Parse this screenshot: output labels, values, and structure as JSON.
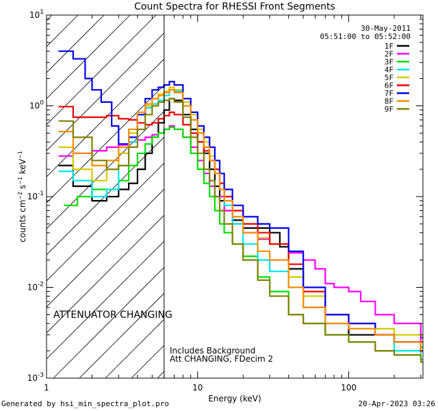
{
  "chart_data": {
    "type": "line",
    "title": "Count Spectra for RHESSI Front Segments",
    "xlabel": "Energy (keV)",
    "ylabel": "counts cm^-2 s^-1 keV^-1",
    "ylabel_parts": {
      "base": "counts cm",
      "exp1": "−2",
      "mid1": " s",
      "exp2": "−1",
      "mid2": " keV",
      "exp3": "−1"
    },
    "xscale": "log",
    "yscale": "log",
    "xlim": [
      1,
      310
    ],
    "ylim": [
      0.001,
      10
    ],
    "x_ticks": [
      {
        "value": 10,
        "label": "10"
      },
      {
        "value": 100,
        "label": "100"
      }
    ],
    "y_ticks": [
      {
        "value": 10,
        "base": "10",
        "exp": "1"
      },
      {
        "value": 1,
        "base": "10",
        "exp": "0"
      },
      {
        "value": 0.1,
        "base": "10",
        "exp": "-1"
      },
      {
        "value": 0.01,
        "base": "10",
        "exp": "-2"
      },
      {
        "value": 0.001,
        "base": "10",
        "exp": "-3"
      }
    ],
    "x_tick_left": "1",
    "date": "30-May-2011",
    "time_range": "05:51:00 to 05:52:00",
    "attenuator_text": "ATTENUATOR CHANGING",
    "attenuator_color": "#e00000",
    "shaded_region_max_energy": 6,
    "notes": [
      "Includes Background",
      "Att CHANGING, FDecim 2"
    ],
    "legend_position": "top-right",
    "series": [
      {
        "name": "1F",
        "color": "#000000",
        "points": [
          [
            1.2,
            0.22
          ],
          [
            1.5,
            0.13
          ],
          [
            2,
            0.09
          ],
          [
            2.5,
            0.1
          ],
          [
            3,
            0.12
          ],
          [
            3.5,
            0.14
          ],
          [
            4,
            0.2
          ],
          [
            4.5,
            0.3
          ],
          [
            5,
            0.45
          ],
          [
            5.5,
            0.65
          ],
          [
            6,
            0.9
          ],
          [
            6.5,
            1.2
          ],
          [
            7,
            1.15
          ],
          [
            8,
            0.8
          ],
          [
            9,
            0.55
          ],
          [
            10,
            0.4
          ],
          [
            11,
            0.3
          ],
          [
            12,
            0.2
          ],
          [
            13,
            0.13
          ],
          [
            14,
            0.09
          ],
          [
            15,
            0.07
          ],
          [
            17,
            0.055
          ],
          [
            20,
            0.045
          ],
          [
            25,
            0.045
          ],
          [
            30,
            0.04
          ],
          [
            35,
            0.028
          ],
          [
            40,
            0.016
          ],
          [
            50,
            0.006
          ],
          [
            70,
            0.004
          ],
          [
            100,
            0.003
          ],
          [
            150,
            0.003
          ],
          [
            200,
            0.0025
          ],
          [
            300,
            0.0028
          ]
        ]
      },
      {
        "name": "2F",
        "color": "#ff00ff",
        "points": [
          [
            1.2,
            0.28
          ],
          [
            1.5,
            0.3
          ],
          [
            2,
            0.32
          ],
          [
            2.5,
            0.35
          ],
          [
            3,
            0.37
          ],
          [
            3.5,
            0.4
          ],
          [
            4,
            0.42
          ],
          [
            4.5,
            0.45
          ],
          [
            5,
            0.48
          ],
          [
            5.5,
            0.5
          ],
          [
            6,
            0.55
          ],
          [
            6.5,
            0.6
          ],
          [
            7,
            0.55
          ],
          [
            8,
            0.45
          ],
          [
            9,
            0.35
          ],
          [
            10,
            0.25
          ],
          [
            11,
            0.18
          ],
          [
            12,
            0.13
          ],
          [
            13,
            0.1
          ],
          [
            15,
            0.07
          ],
          [
            17,
            0.05
          ],
          [
            20,
            0.04
          ],
          [
            25,
            0.034
          ],
          [
            30,
            0.03
          ],
          [
            40,
            0.024
          ],
          [
            50,
            0.02
          ],
          [
            60,
            0.016
          ],
          [
            70,
            0.011
          ],
          [
            80,
            0.01
          ],
          [
            100,
            0.009
          ],
          [
            120,
            0.007
          ],
          [
            150,
            0.005
          ],
          [
            200,
            0.004
          ],
          [
            300,
            0.002
          ]
        ]
      },
      {
        "name": "3F",
        "color": "#00e000",
        "points": [
          [
            1.3,
            0.08
          ],
          [
            1.6,
            0.1
          ],
          [
            2,
            0.12
          ],
          [
            2.5,
            0.12
          ],
          [
            3,
            0.15
          ],
          [
            3.5,
            0.22
          ],
          [
            4,
            0.3
          ],
          [
            4.5,
            0.38
          ],
          [
            5,
            0.45
          ],
          [
            5.5,
            0.5
          ],
          [
            6,
            0.55
          ],
          [
            6.5,
            0.58
          ],
          [
            7,
            0.55
          ],
          [
            8,
            0.45
          ],
          [
            9,
            0.3
          ],
          [
            10,
            0.2
          ],
          [
            11,
            0.14
          ],
          [
            12,
            0.1
          ],
          [
            13,
            0.07
          ],
          [
            14,
            0.05
          ],
          [
            15,
            0.04
          ],
          [
            17,
            0.03
          ],
          [
            20,
            0.022
          ],
          [
            25,
            0.013
          ],
          [
            30,
            0.009
          ],
          [
            40,
            0.005
          ],
          [
            50,
            0.004
          ],
          [
            70,
            0.003
          ],
          [
            100,
            0.0025
          ],
          [
            150,
            0.002
          ],
          [
            200,
            0.0018
          ],
          [
            300,
            0.0022
          ]
        ]
      },
      {
        "name": "4F",
        "color": "#00e5ee",
        "points": [
          [
            1.2,
            0.19
          ],
          [
            1.5,
            0.15
          ],
          [
            2,
            0.1
          ],
          [
            2.5,
            0.12
          ],
          [
            3,
            0.22
          ],
          [
            3.5,
            0.4
          ],
          [
            4,
            0.8
          ],
          [
            4.5,
            0.95
          ],
          [
            5,
            1.05
          ],
          [
            5.5,
            1.15
          ],
          [
            6,
            1.3
          ],
          [
            6.5,
            1.5
          ],
          [
            7,
            1.45
          ],
          [
            8,
            1.0
          ],
          [
            9,
            0.7
          ],
          [
            10,
            0.5
          ],
          [
            11,
            0.35
          ],
          [
            12,
            0.25
          ],
          [
            13,
            0.18
          ],
          [
            14,
            0.12
          ],
          [
            15,
            0.08
          ],
          [
            17,
            0.05
          ],
          [
            20,
            0.03
          ],
          [
            25,
            0.02
          ],
          [
            30,
            0.015
          ],
          [
            40,
            0.01
          ],
          [
            50,
            0.006
          ],
          [
            70,
            0.004
          ],
          [
            100,
            0.0035
          ],
          [
            150,
            0.003
          ],
          [
            200,
            0.002
          ],
          [
            300,
            0.0016
          ]
        ]
      },
      {
        "name": "5F",
        "color": "#d4c800",
        "points": [
          [
            1.2,
            0.35
          ],
          [
            1.5,
            0.2
          ],
          [
            2,
            0.15
          ],
          [
            2.5,
            0.2
          ],
          [
            3,
            0.3
          ],
          [
            3.5,
            0.5
          ],
          [
            4,
            0.8
          ],
          [
            4.5,
            1.0
          ],
          [
            5,
            1.2
          ],
          [
            5.5,
            1.35
          ],
          [
            6,
            1.45
          ],
          [
            6.5,
            1.6
          ],
          [
            7,
            1.5
          ],
          [
            8,
            1.1
          ],
          [
            9,
            0.8
          ],
          [
            10,
            0.55
          ],
          [
            11,
            0.4
          ],
          [
            12,
            0.28
          ],
          [
            13,
            0.2
          ],
          [
            14,
            0.14
          ],
          [
            15,
            0.1
          ],
          [
            17,
            0.07
          ],
          [
            20,
            0.05
          ],
          [
            25,
            0.035
          ],
          [
            30,
            0.03
          ],
          [
            40,
            0.013
          ],
          [
            50,
            0.008
          ],
          [
            70,
            0.005
          ],
          [
            100,
            0.004
          ],
          [
            150,
            0.0035
          ],
          [
            200,
            0.003
          ],
          [
            300,
            0.003
          ]
        ]
      },
      {
        "name": "6F",
        "color": "#ee0000",
        "points": [
          [
            1.2,
            0.98
          ],
          [
            1.5,
            0.75
          ],
          [
            2,
            0.75
          ],
          [
            2.5,
            0.78
          ],
          [
            3,
            0.72
          ],
          [
            3.5,
            0.7
          ],
          [
            4,
            0.65
          ],
          [
            4.5,
            0.62
          ],
          [
            5,
            0.65
          ],
          [
            5.5,
            0.72
          ],
          [
            6,
            0.78
          ],
          [
            6.5,
            0.85
          ],
          [
            7,
            0.8
          ],
          [
            8,
            0.62
          ],
          [
            9,
            0.5
          ],
          [
            10,
            0.4
          ],
          [
            11,
            0.32
          ],
          [
            12,
            0.25
          ],
          [
            13,
            0.2
          ],
          [
            14,
            0.14
          ],
          [
            15,
            0.1
          ],
          [
            17,
            0.07
          ],
          [
            20,
            0.05
          ],
          [
            25,
            0.04
          ],
          [
            30,
            0.03
          ],
          [
            40,
            0.018
          ],
          [
            50,
            0.009
          ],
          [
            70,
            0.005
          ],
          [
            100,
            0.004
          ],
          [
            150,
            0.003
          ],
          [
            200,
            0.0025
          ],
          [
            300,
            0.0025
          ]
        ]
      },
      {
        "name": "7F",
        "color": "#0000ee",
        "points": [
          [
            1.2,
            4.0
          ],
          [
            1.5,
            3.3
          ],
          [
            1.8,
            2.0
          ],
          [
            2,
            1.5
          ],
          [
            2.3,
            1.1
          ],
          [
            2.7,
            0.6
          ],
          [
            3,
            0.38
          ],
          [
            3.5,
            0.45
          ],
          [
            4,
            0.8
          ],
          [
            4.5,
            1.2
          ],
          [
            5,
            1.5
          ],
          [
            5.5,
            1.6
          ],
          [
            6,
            1.7
          ],
          [
            6.5,
            1.85
          ],
          [
            7,
            1.7
          ],
          [
            8,
            1.2
          ],
          [
            9,
            0.85
          ],
          [
            10,
            0.6
          ],
          [
            11,
            0.45
          ],
          [
            12,
            0.35
          ],
          [
            13,
            0.25
          ],
          [
            14,
            0.18
          ],
          [
            15,
            0.12
          ],
          [
            17,
            0.08
          ],
          [
            20,
            0.06
          ],
          [
            25,
            0.05
          ],
          [
            30,
            0.045
          ],
          [
            40,
            0.025
          ],
          [
            50,
            0.01
          ],
          [
            70,
            0.005
          ],
          [
            100,
            0.004
          ],
          [
            150,
            0.003
          ],
          [
            200,
            0.0025
          ],
          [
            300,
            0.002
          ]
        ]
      },
      {
        "name": "8F",
        "color": "#ff8c00",
        "points": [
          [
            1.2,
            0.52
          ],
          [
            1.5,
            0.3
          ],
          [
            2,
            0.22
          ],
          [
            2.5,
            0.25
          ],
          [
            3,
            0.35
          ],
          [
            3.5,
            0.55
          ],
          [
            4,
            0.85
          ],
          [
            4.5,
            1.05
          ],
          [
            5,
            1.2
          ],
          [
            5.5,
            1.3
          ],
          [
            6,
            1.4
          ],
          [
            6.5,
            1.5
          ],
          [
            7,
            1.4
          ],
          [
            8,
            1.0
          ],
          [
            9,
            0.7
          ],
          [
            10,
            0.5
          ],
          [
            11,
            0.35
          ],
          [
            12,
            0.25
          ],
          [
            13,
            0.18
          ],
          [
            14,
            0.12
          ],
          [
            15,
            0.09
          ],
          [
            17,
            0.06
          ],
          [
            20,
            0.04
          ],
          [
            25,
            0.025
          ],
          [
            30,
            0.02
          ],
          [
            40,
            0.01
          ],
          [
            50,
            0.006
          ],
          [
            70,
            0.004
          ],
          [
            100,
            0.0035
          ],
          [
            150,
            0.003
          ],
          [
            200,
            0.0025
          ],
          [
            300,
            0.002
          ]
        ]
      },
      {
        "name": "9F",
        "color": "#808000",
        "points": [
          [
            1.2,
            0.68
          ],
          [
            1.5,
            0.45
          ],
          [
            2,
            0.25
          ],
          [
            2.5,
            0.2
          ],
          [
            3,
            0.22
          ],
          [
            3.5,
            0.35
          ],
          [
            4,
            0.55
          ],
          [
            4.5,
            0.8
          ],
          [
            5,
            1.0
          ],
          [
            5.5,
            1.1
          ],
          [
            6,
            1.15
          ],
          [
            6.5,
            1.2
          ],
          [
            7,
            1.1
          ],
          [
            8,
            0.75
          ],
          [
            9,
            0.45
          ],
          [
            10,
            0.3
          ],
          [
            11,
            0.2
          ],
          [
            12,
            0.15
          ],
          [
            13,
            0.1
          ],
          [
            14,
            0.07
          ],
          [
            15,
            0.05
          ],
          [
            17,
            0.03
          ],
          [
            20,
            0.02
          ],
          [
            25,
            0.012
          ],
          [
            30,
            0.008
          ],
          [
            40,
            0.005
          ],
          [
            50,
            0.004
          ],
          [
            70,
            0.003
          ],
          [
            100,
            0.0025
          ],
          [
            150,
            0.002
          ],
          [
            200,
            0.0018
          ],
          [
            300,
            0.0015
          ]
        ]
      }
    ]
  },
  "footer": {
    "generated_by": "Generated by hsi_min_spectra_plot.pro",
    "timestamp": "20-Apr-2023 03:26"
  }
}
